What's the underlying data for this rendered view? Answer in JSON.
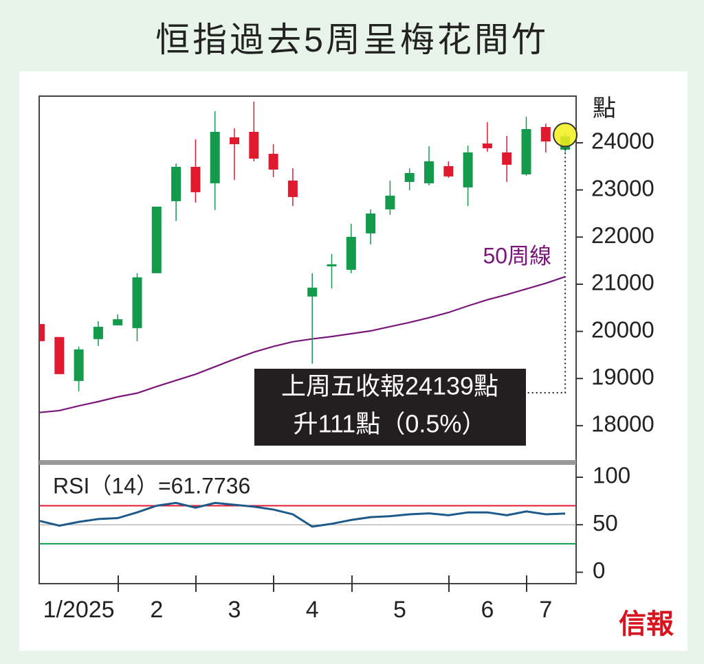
{
  "chart_data": [
    {
      "type": "candlestick",
      "title": "恒指過去5周呈梅花間竹",
      "y_label": "點",
      "open": [
        20156,
        19880,
        18948,
        19836,
        20127,
        20069,
        21234,
        22762,
        23490,
        23141,
        24116,
        24233,
        23767,
        23199,
        20739,
        21379,
        21306,
        22078,
        22588,
        23170,
        23141,
        23505,
        23054,
        23985,
        23796,
        23330,
        24335,
        23854
      ],
      "high": [
        20156,
        19880,
        19676,
        20214,
        20360,
        21234,
        22646,
        23563,
        24073,
        24670,
        24306,
        24874,
        23971,
        23461,
        21234,
        21641,
        22282,
        22588,
        23199,
        23461,
        23927,
        23607,
        23942,
        24437,
        24146,
        24553,
        24408,
        24200
      ],
      "low": [
        19792,
        19093,
        18729,
        19690,
        20127,
        19792,
        21234,
        22340,
        22733,
        22573,
        23214,
        23607,
        23272,
        22660,
        19312,
        20913,
        21234,
        21845,
        22471,
        22995,
        23097,
        23257,
        22660,
        23811,
        23170,
        23301,
        23796,
        23800
      ],
      "close": [
        19792,
        19093,
        19617,
        20098,
        20258,
        21146,
        22646,
        23490,
        22952,
        24233,
        23971,
        23665,
        23432,
        22850,
        20928,
        21423,
        22005,
        22500,
        22879,
        23359,
        23607,
        23287,
        23796,
        23884,
        23534,
        24291,
        24028,
        24139
      ],
      "up_color": "#149a4b",
      "down_color": "#e1192f",
      "series": [
        {
          "name": "50周線",
          "color": "#7a1579",
          "values": [
            18280,
            18320,
            18420,
            18510,
            18610,
            18690,
            18830,
            18960,
            19090,
            19250,
            19410,
            19560,
            19680,
            19780,
            19840,
            19890,
            19950,
            20010,
            20100,
            20190,
            20290,
            20400,
            20540,
            20670,
            20780,
            20900,
            21020,
            21160
          ]
        }
      ],
      "ylim": [
        17270,
        24990
      ],
      "yticks": [
        18000,
        19000,
        20000,
        21000,
        22000,
        23000,
        24000
      ],
      "annotation": [
        "上周五收報24139點",
        "升111點（0.5%）"
      ]
    },
    {
      "type": "line",
      "title": "RSI（14）=61.7736",
      "color": "#1d5a8a",
      "categories": [
        null,
        null,
        "1/2025",
        null,
        null,
        null,
        "2",
        null,
        null,
        null,
        "3",
        null,
        null,
        null,
        "4",
        null,
        null,
        null,
        "5",
        null,
        null,
        null,
        null,
        "6",
        null,
        null,
        "7",
        null
      ],
      "values": [
        54,
        49,
        53,
        56,
        57,
        63,
        70,
        73,
        68,
        73,
        71,
        69,
        66,
        61,
        48,
        51,
        55,
        58,
        59,
        61,
        62,
        60,
        63,
        63,
        60,
        64,
        61,
        61.7736
      ],
      "hlines": [
        {
          "value": 70,
          "color": "#e1192f"
        },
        {
          "value": 50,
          "color": "#999999"
        },
        {
          "value": 30,
          "color": "#149a4b"
        }
      ],
      "ylim": [
        -12,
        113
      ],
      "yticks": [
        0,
        50,
        100
      ]
    }
  ],
  "source": "信報"
}
